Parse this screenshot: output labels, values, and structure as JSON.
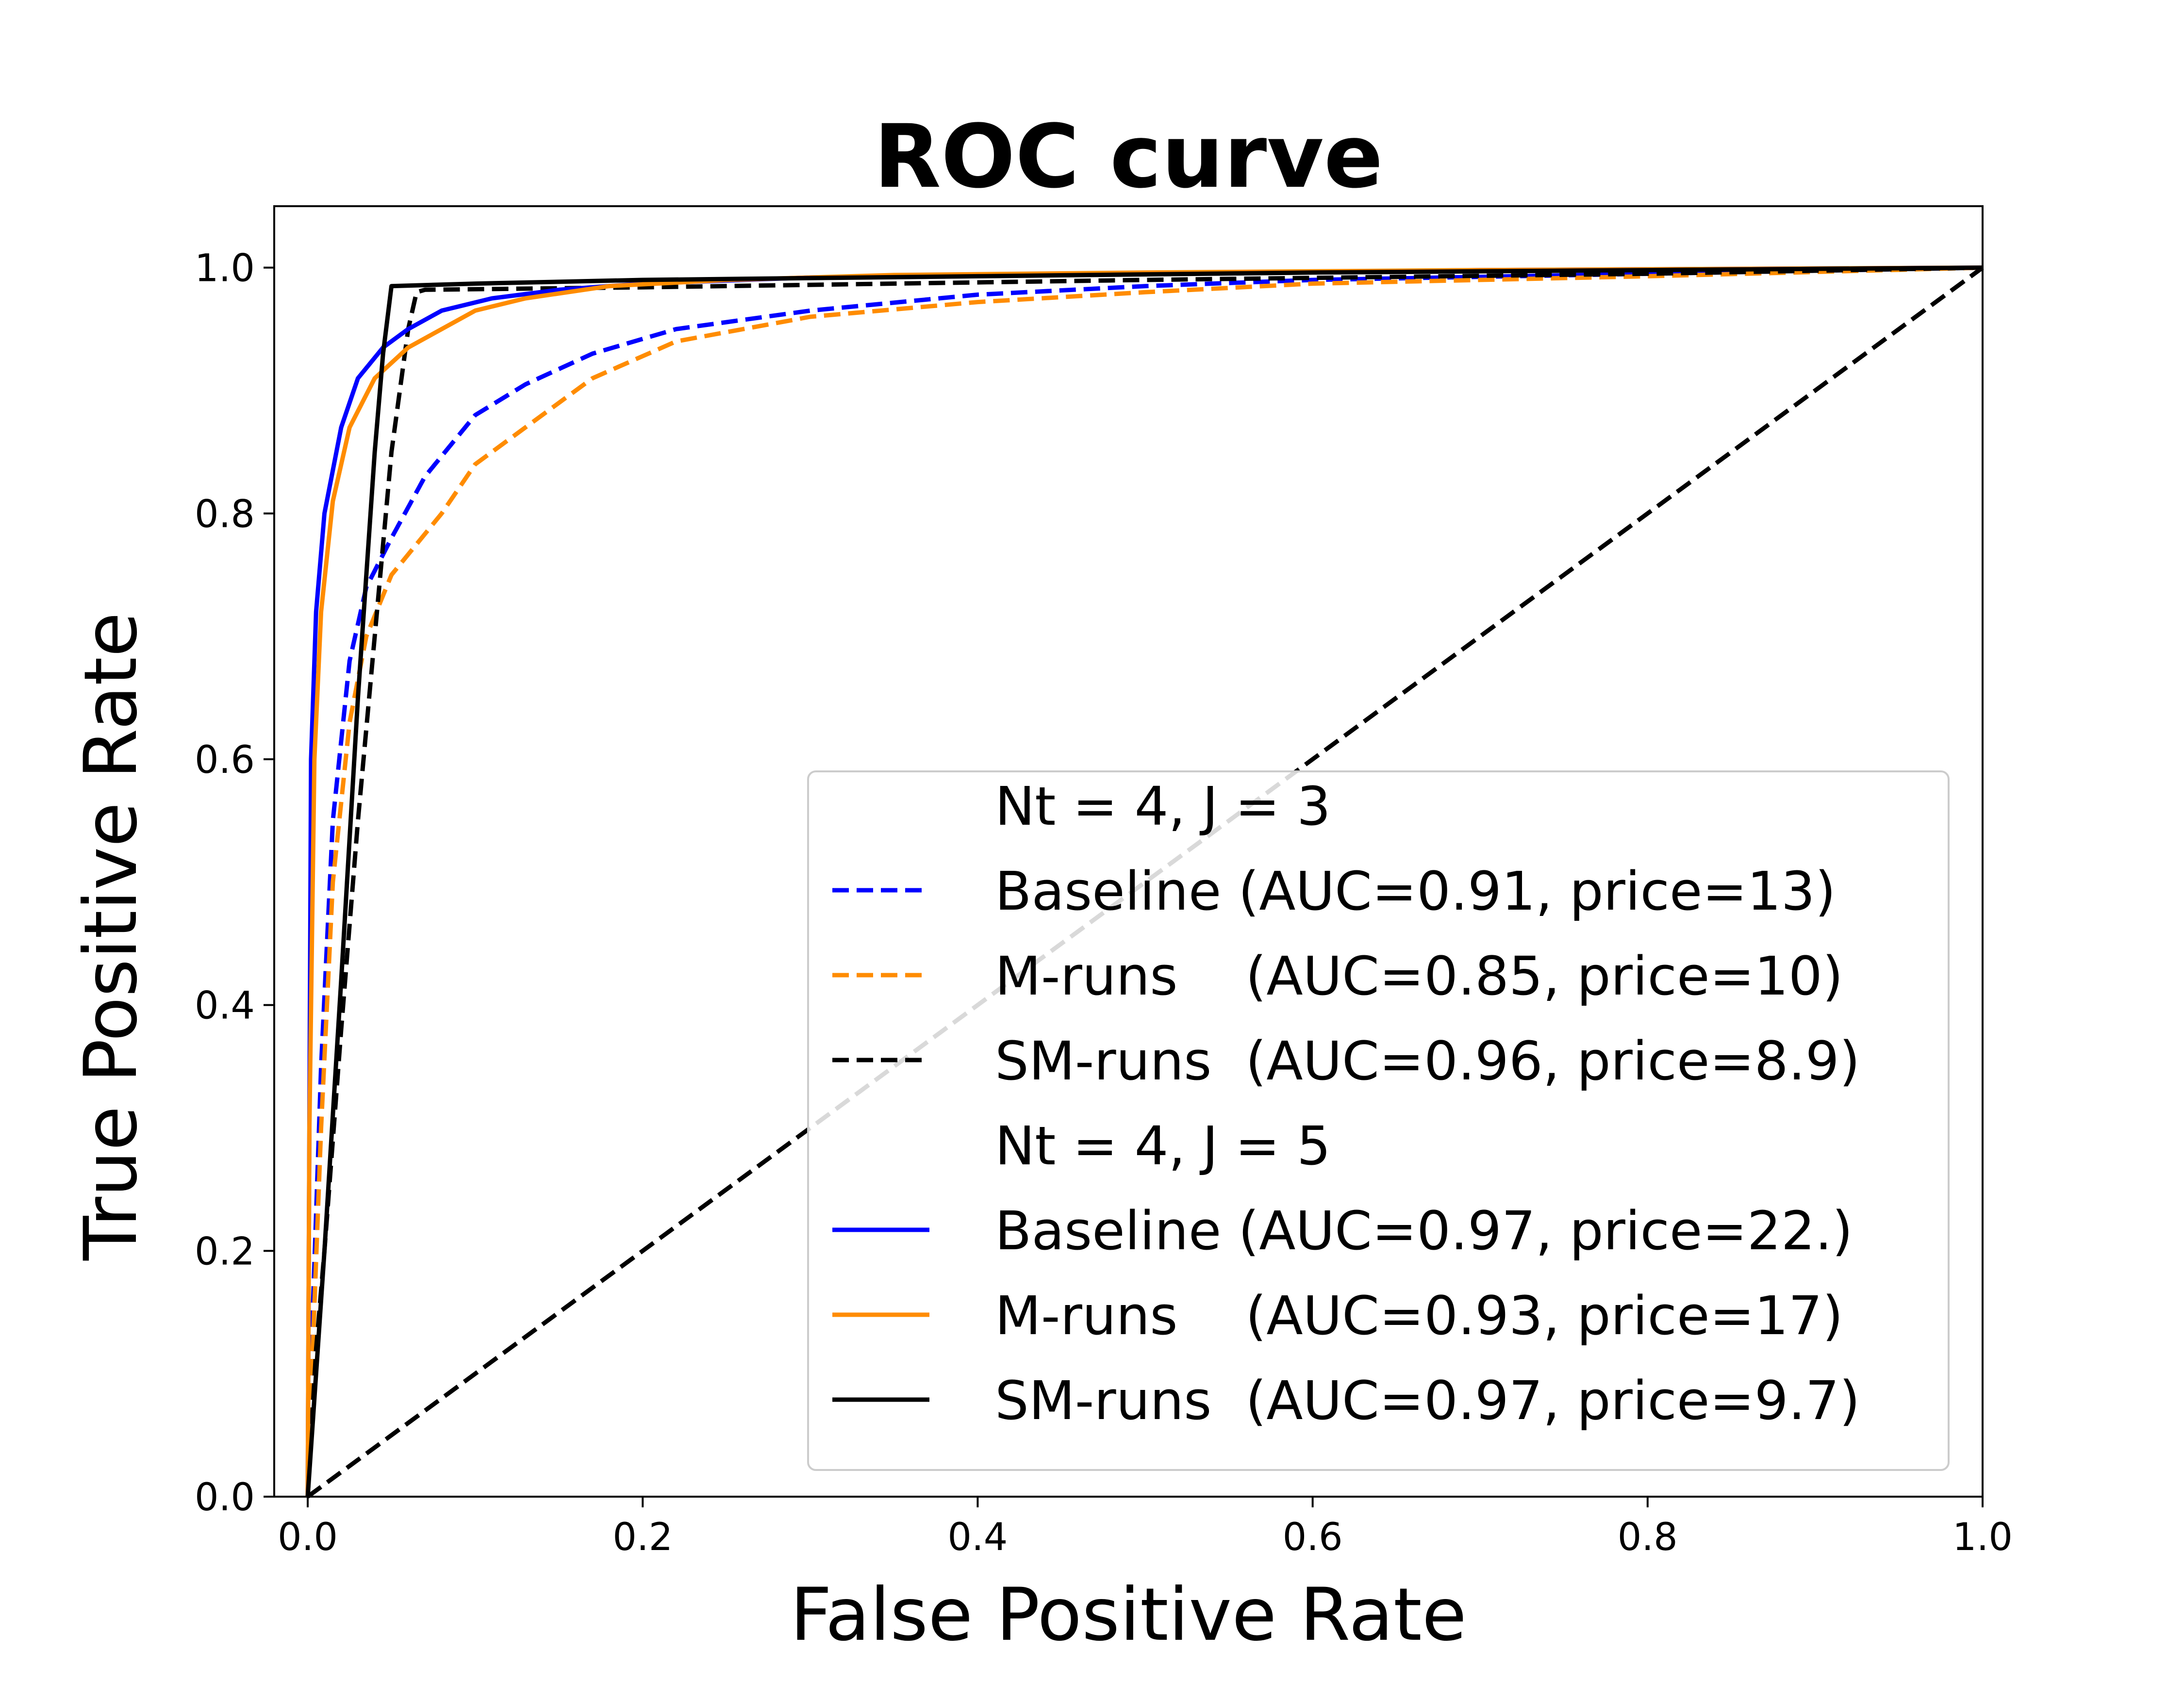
{
  "chart_data": {
    "type": "line",
    "title": "ROC curve",
    "xlabel": "False Positive Rate",
    "ylabel": "True Positive Rate",
    "xlim": [
      -0.02,
      1.0
    ],
    "ylim": [
      0.0,
      1.05
    ],
    "xticks": [
      "0.0",
      "0.2",
      "0.4",
      "0.6",
      "0.8",
      "1.0"
    ],
    "yticks": [
      "0.0",
      "0.2",
      "0.4",
      "0.6",
      "0.8",
      "1.0"
    ],
    "grid": false,
    "legend_position": "lower-right",
    "legend": [
      {
        "group": "Nt = 4, J = 3"
      },
      {
        "label": "Baseline (AUC=0.91, price=13)",
        "series": 0
      },
      {
        "label": "M-runs    (AUC=0.85, price=10)",
        "series": 1
      },
      {
        "label": "SM-runs  (AUC=0.96, price=8.9)",
        "series": 2
      },
      {
        "group": "Nt = 4, J = 5"
      },
      {
        "label": "Baseline (AUC=0.97, price=22.)",
        "series": 3
      },
      {
        "label": "M-runs    (AUC=0.93, price=17)",
        "series": 4
      },
      {
        "label": "SM-runs  (AUC=0.97, price=9.7)",
        "series": 5
      }
    ],
    "series": [
      {
        "color": "#0000ff",
        "dash": "dashed",
        "x": [
          0,
          0.003,
          0.008,
          0.015,
          0.025,
          0.035,
          0.05,
          0.07,
          0.1,
          0.13,
          0.17,
          0.22,
          0.3,
          0.4,
          0.5,
          0.6,
          0.8,
          1.0
        ],
        "y": [
          0,
          0.15,
          0.35,
          0.55,
          0.68,
          0.74,
          0.78,
          0.83,
          0.88,
          0.905,
          0.93,
          0.95,
          0.965,
          0.978,
          0.985,
          0.99,
          0.995,
          1.0
        ]
      },
      {
        "color": "#ff8c00",
        "dash": "dashed",
        "x": [
          0,
          0.003,
          0.008,
          0.015,
          0.025,
          0.035,
          0.05,
          0.08,
          0.1,
          0.13,
          0.17,
          0.22,
          0.3,
          0.4,
          0.5,
          0.6,
          0.8,
          1.0
        ],
        "y": [
          0,
          0.12,
          0.3,
          0.5,
          0.63,
          0.7,
          0.75,
          0.8,
          0.84,
          0.87,
          0.91,
          0.94,
          0.96,
          0.972,
          0.98,
          0.987,
          0.993,
          1.0
        ]
      },
      {
        "color": "#000000",
        "dash": "dashed",
        "x": [
          0,
          0.005,
          0.01,
          0.02,
          0.03,
          0.04,
          0.05,
          0.06,
          0.065,
          0.07,
          0.2,
          0.5,
          0.8,
          1.0
        ],
        "y": [
          0,
          0.12,
          0.2,
          0.38,
          0.55,
          0.7,
          0.85,
          0.95,
          0.98,
          0.982,
          0.984,
          0.99,
          0.995,
          1.0
        ]
      },
      {
        "color": "#0000ff",
        "dash": "solid",
        "x": [
          0,
          0.002,
          0.005,
          0.01,
          0.02,
          0.03,
          0.045,
          0.06,
          0.08,
          0.11,
          0.15,
          0.2,
          0.3,
          0.5,
          0.7,
          1.0
        ],
        "y": [
          0,
          0.6,
          0.72,
          0.8,
          0.87,
          0.91,
          0.935,
          0.95,
          0.965,
          0.975,
          0.982,
          0.987,
          0.992,
          0.995,
          0.998,
          1.0
        ]
      },
      {
        "color": "#ff8c00",
        "dash": "solid",
        "x": [
          0,
          0.001,
          0.004,
          0.008,
          0.015,
          0.025,
          0.04,
          0.06,
          0.08,
          0.1,
          0.13,
          0.18,
          0.25,
          0.35,
          0.5,
          0.7,
          1.0
        ],
        "y": [
          0,
          0.3,
          0.6,
          0.72,
          0.81,
          0.87,
          0.91,
          0.935,
          0.95,
          0.965,
          0.975,
          0.985,
          0.99,
          0.994,
          0.996,
          0.998,
          1.0
        ]
      },
      {
        "color": "#000000",
        "dash": "solid",
        "x": [
          0,
          0.01,
          0.02,
          0.03,
          0.04,
          0.045,
          0.05,
          0.1,
          0.2,
          0.4,
          0.6,
          0.8,
          1.0
        ],
        "y": [
          0,
          0.2,
          0.42,
          0.65,
          0.85,
          0.93,
          0.985,
          0.987,
          0.99,
          0.993,
          0.996,
          0.998,
          1.0
        ]
      },
      {
        "color": "#000000",
        "dash": "dashed",
        "reference": true,
        "x": [
          0,
          1
        ],
        "y": [
          0,
          1
        ]
      }
    ]
  }
}
